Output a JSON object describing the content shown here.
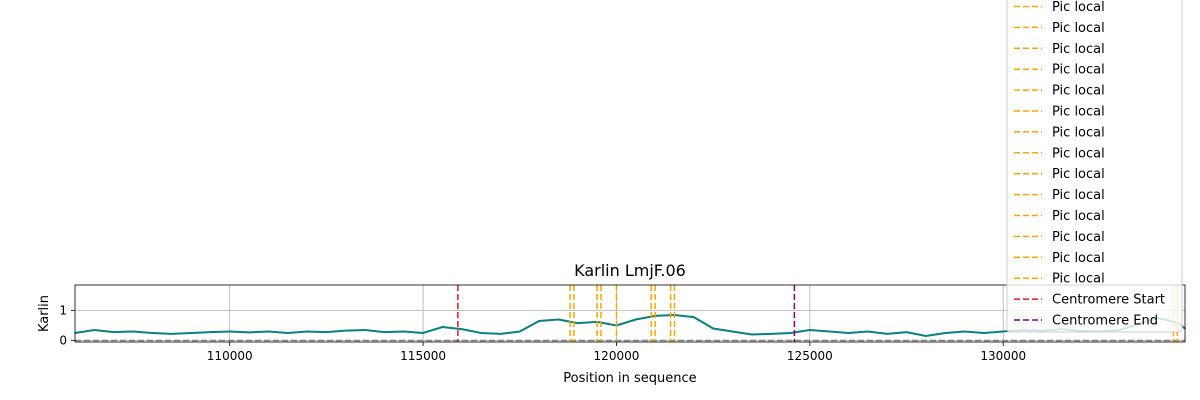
{
  "chart_data": {
    "type": "line",
    "title": "Karlin LmjF.06",
    "xlabel": "Position in sequence",
    "ylabel": "Karlin",
    "xlim": [
      106000,
      134700
    ],
    "ylim": [
      -0.05,
      1.85
    ],
    "xticks": [
      110000,
      115000,
      120000,
      125000,
      130000
    ],
    "xtick_labels": [
      "110000",
      "115000",
      "120000",
      "125000",
      "130000"
    ],
    "yticks": [
      0,
      1
    ],
    "ytick_labels": [
      "0",
      "1"
    ],
    "grid": true,
    "legend_position": "top-right",
    "colors": {
      "series": "#0a8080",
      "baseline": "#808080",
      "local_peak": "#ffa500",
      "centromere_start": "#e41a1c",
      "centromere_end": "#800080"
    },
    "series": [
      {
        "x": [
          106000,
          106500,
          107000,
          107500,
          108000,
          108500,
          109000,
          109500,
          110000,
          110500,
          111000,
          111500,
          112000,
          112500,
          113000,
          113500,
          114000,
          114500,
          115000,
          115500,
          116000,
          116500,
          117000,
          117500,
          118000,
          118500,
          119000,
          119500,
          120000,
          120500,
          121000,
          121500,
          122000,
          122500,
          123000,
          123500,
          124000,
          124500,
          125000,
          125500,
          126000,
          126500,
          127000,
          127500,
          128000,
          128500,
          129000,
          129500,
          130000,
          130500,
          131000,
          131500,
          132000,
          132500,
          133000,
          133500,
          134000,
          134500,
          134700
        ],
        "values": [
          0.25,
          0.35,
          0.28,
          0.3,
          0.25,
          0.22,
          0.25,
          0.28,
          0.3,
          0.27,
          0.3,
          0.25,
          0.3,
          0.28,
          0.33,
          0.35,
          0.28,
          0.3,
          0.25,
          0.45,
          0.38,
          0.25,
          0.22,
          0.3,
          0.65,
          0.7,
          0.58,
          0.62,
          0.5,
          0.7,
          0.82,
          0.85,
          0.78,
          0.4,
          0.3,
          0.2,
          0.22,
          0.25,
          0.35,
          0.3,
          0.25,
          0.3,
          0.22,
          0.28,
          0.15,
          0.25,
          0.3,
          0.25,
          0.3,
          0.35,
          0.33,
          0.38,
          0.32,
          0.3,
          0.35,
          0.55,
          0.75,
          0.6,
          0.4
        ]
      }
    ],
    "horizontal_line": 0,
    "vertical_lines": [
      {
        "x": 115900,
        "kind": "centromere_start"
      },
      {
        "x": 118800,
        "kind": "local_peak"
      },
      {
        "x": 118900,
        "kind": "local_peak"
      },
      {
        "x": 119500,
        "kind": "local_peak"
      },
      {
        "x": 119600,
        "kind": "local_peak"
      },
      {
        "x": 120000,
        "kind": "local_peak"
      },
      {
        "x": 120900,
        "kind": "local_peak"
      },
      {
        "x": 121000,
        "kind": "local_peak"
      },
      {
        "x": 121400,
        "kind": "local_peak"
      },
      {
        "x": 121500,
        "kind": "local_peak"
      },
      {
        "x": 124600,
        "kind": "centromere_end"
      },
      {
        "x": 134400,
        "kind": "local_peak"
      },
      {
        "x": 134500,
        "kind": "local_peak"
      }
    ],
    "legend": [
      {
        "label": "Pic local",
        "kind": "local_peak"
      },
      {
        "label": "Pic local",
        "kind": "local_peak"
      },
      {
        "label": "Pic local",
        "kind": "local_peak"
      },
      {
        "label": "Pic local",
        "kind": "local_peak"
      },
      {
        "label": "Pic local",
        "kind": "local_peak"
      },
      {
        "label": "Pic local",
        "kind": "local_peak"
      },
      {
        "label": "Pic local",
        "kind": "local_peak"
      },
      {
        "label": "Pic local",
        "kind": "local_peak"
      },
      {
        "label": "Pic local",
        "kind": "local_peak"
      },
      {
        "label": "Pic local",
        "kind": "local_peak"
      },
      {
        "label": "Pic local",
        "kind": "local_peak"
      },
      {
        "label": "Pic local",
        "kind": "local_peak"
      },
      {
        "label": "Pic local",
        "kind": "local_peak"
      },
      {
        "label": "Pic local",
        "kind": "local_peak"
      },
      {
        "label": "Centromere Start",
        "kind": "centromere_start"
      },
      {
        "label": "Centromere End",
        "kind": "centromere_end"
      }
    ]
  }
}
